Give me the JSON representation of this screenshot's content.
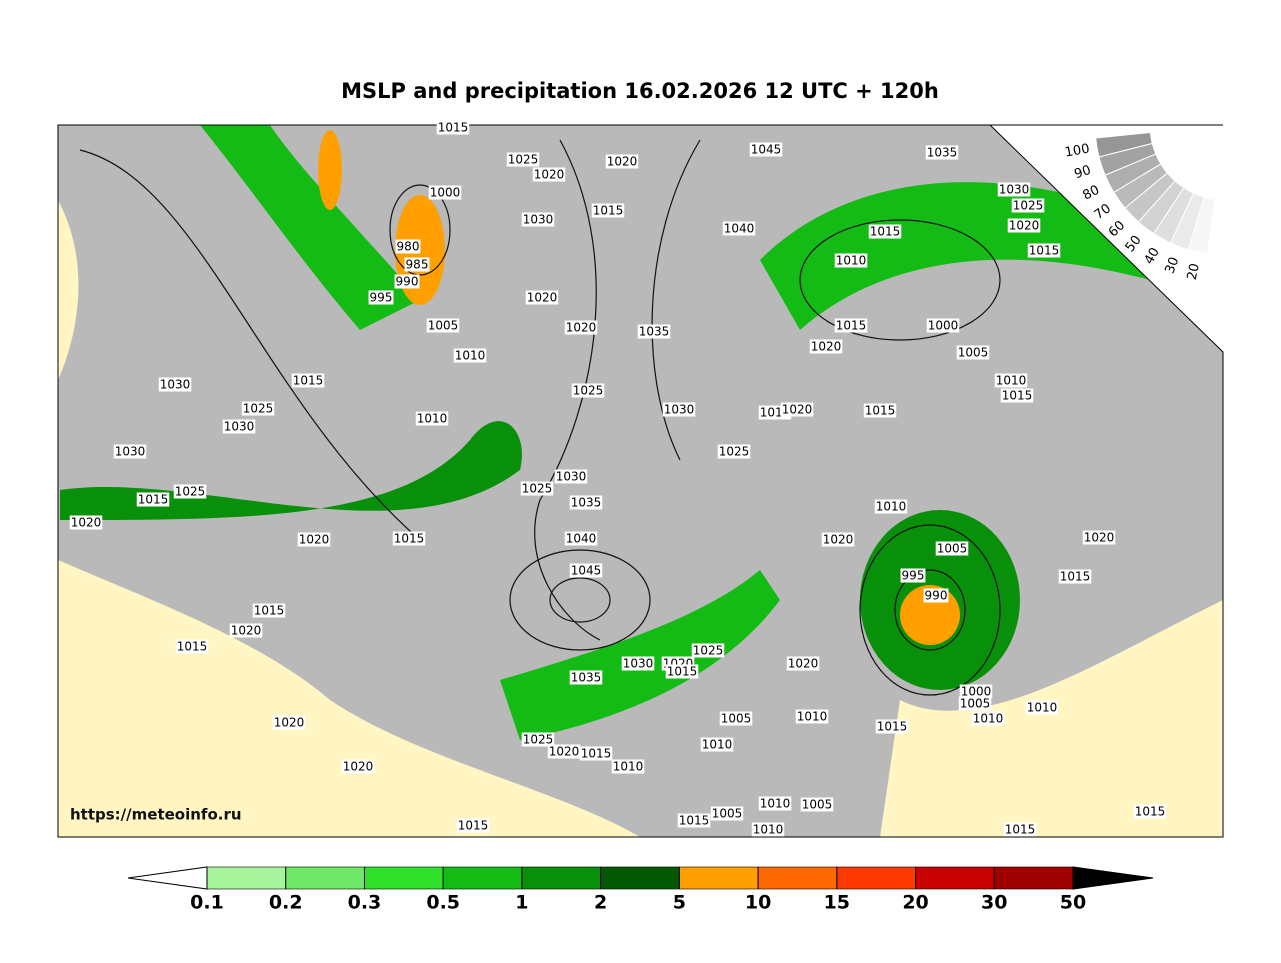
{
  "title": "MSLP and precipitation 16.02.2026 12 UTC + 120h",
  "watermark": "https://meteoinfo.ru",
  "colorbar": {
    "ticks": [
      0.1,
      0.2,
      0.3,
      0.5,
      1,
      2,
      5,
      10,
      15,
      20,
      30,
      50
    ],
    "colors": [
      "#a6f59c",
      "#6ee866",
      "#2ee02a",
      "#14bb14",
      "#08900a",
      "#035803",
      "#ffa000",
      "#ff6a00",
      "#ff3a00",
      "#c80000",
      "#a00000"
    ]
  },
  "cloud_scale": {
    "ticks": [
      100,
      90,
      80,
      70,
      60,
      50,
      40,
      30,
      20
    ]
  },
  "isobar_labels": [
    1015,
    1025,
    1020,
    1020,
    1000,
    1030,
    1015,
    1045,
    1035,
    1030,
    1025,
    1020,
    1015,
    1040,
    1015,
    1010,
    980,
    985,
    990,
    995,
    1020,
    1020,
    1035,
    1005,
    1010,
    1015,
    1000,
    1020,
    1005,
    1010,
    1015,
    1030,
    1015,
    1025,
    1030,
    1010,
    1025,
    1030,
    1015,
    1020,
    1015,
    1030,
    1025,
    1030,
    1025,
    1035,
    1015,
    1025,
    1020,
    1015,
    1020,
    1040,
    1010,
    1020,
    1005,
    1020,
    1045,
    995,
    990,
    1015,
    1015,
    1020,
    1015,
    1025,
    1030,
    1020,
    1015,
    1020,
    1035,
    1000,
    1005,
    1010,
    1010,
    1005,
    1010,
    1015,
    1020,
    1025,
    1020,
    1015,
    1010,
    1010,
    1020,
    1005,
    1010,
    1005,
    1015,
    1015,
    1010,
    1015,
    1015
  ]
}
